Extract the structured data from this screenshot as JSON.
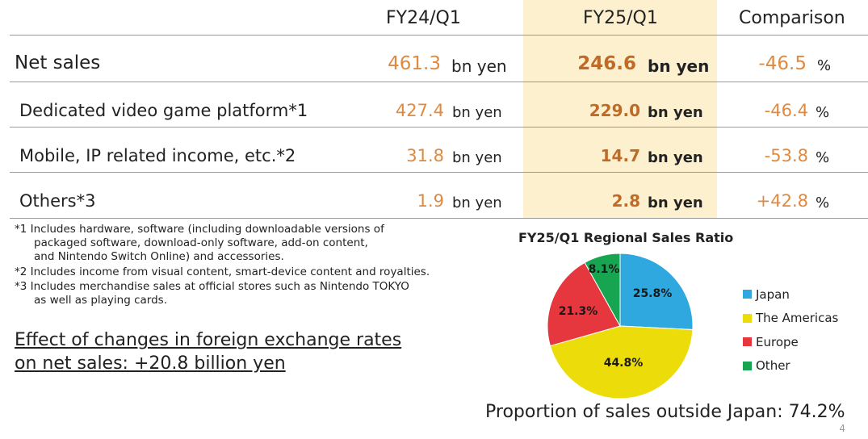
{
  "header": {
    "col1": "FY24/Q1",
    "col2": "FY25/Q1",
    "col3": "Comparison"
  },
  "rows": [
    {
      "label": "Net sales",
      "prev": "461.3",
      "prev_unit": "bn yen",
      "curr": "246.6",
      "curr_unit": "bn yen",
      "change": "-46.5",
      "change_unit": "%"
    },
    {
      "label": "Dedicated video game platform*1",
      "prev": "427.4",
      "prev_unit": "bn yen",
      "curr": "229.0",
      "curr_unit": "bn yen",
      "change": "-46.4",
      "change_unit": "%"
    },
    {
      "label": "Mobile, IP related income, etc.*2",
      "prev": "31.8",
      "prev_unit": "bn yen",
      "curr": "14.7",
      "curr_unit": "bn yen",
      "change": "-53.8",
      "change_unit": "%"
    },
    {
      "label": "Others*3",
      "prev": "1.9",
      "prev_unit": "bn yen",
      "curr": "2.8",
      "curr_unit": "bn yen",
      "change": "+42.8",
      "change_unit": "%"
    }
  ],
  "notes": {
    "n1_line1": "*1 Includes hardware, software (including downloadable versions of",
    "n1_line2": "packaged software, download-only software, add-on content,",
    "n1_line3": "and Nintendo Switch Online) and accessories.",
    "n2": "*2 Includes income from visual content, smart-device content and royalties.",
    "n3_line1": "*3 Includes merchandise sales at official stores such as Nintendo TOKYO",
    "n3_line2": "as well as playing cards."
  },
  "fx": {
    "line1": "Effect of changes in foreign exchange rates",
    "line2": "on net sales: +20.8 billion yen"
  },
  "proportion_text": "Proportion of sales outside Japan: 74.2%",
  "page_number": "4",
  "chart_data": {
    "type": "pie",
    "title": "FY25/Q1 Regional Sales Ratio",
    "categories": [
      "Japan",
      "The Americas",
      "Europe",
      "Other"
    ],
    "values": [
      25.8,
      44.8,
      21.3,
      8.1
    ],
    "labels": [
      "25.8%",
      "44.8%",
      "21.3%",
      "8.1%"
    ],
    "colors": [
      "#2ea8df",
      "#ecdc0a",
      "#e6373f",
      "#17a552"
    ],
    "start": "12 o'clock, clockwise",
    "legend": "right"
  }
}
